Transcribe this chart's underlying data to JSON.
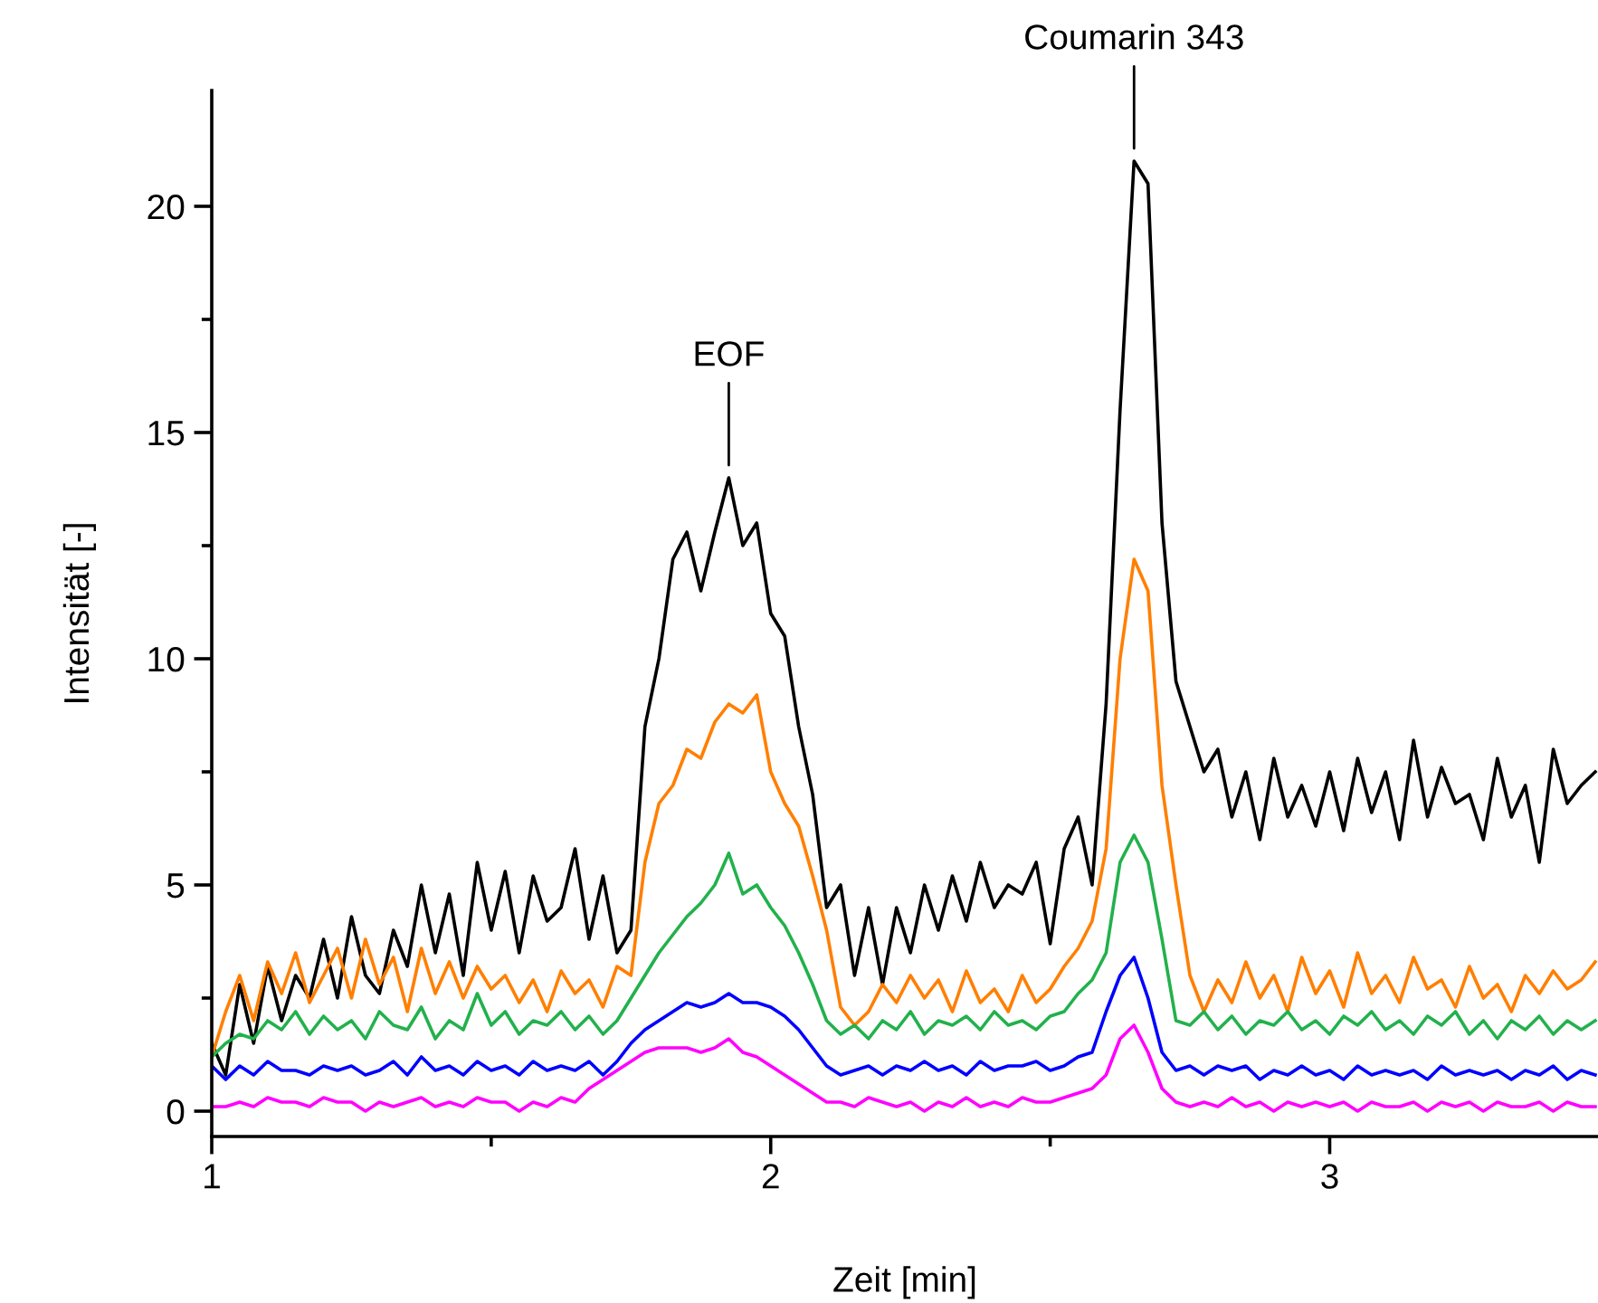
{
  "chart_data": {
    "type": "line",
    "xlabel": "Zeit [min]",
    "ylabel": "Intensität [-]",
    "xlim": [
      1,
      3.48
    ],
    "ylim": [
      -0.56,
      22.56
    ],
    "xticks": [
      1,
      {
        "value": 1.5,
        "label": null
      },
      2,
      {
        "value": 2.5,
        "label": null
      },
      3
    ],
    "yticks": [
      0,
      {
        "value": 2.5,
        "label": null
      },
      5,
      {
        "value": 7.5,
        "label": null
      },
      10,
      {
        "value": 12.5,
        "label": null
      },
      15,
      {
        "value": 17.5,
        "label": null
      },
      20
    ],
    "grid": false,
    "legend": false,
    "marker": "none",
    "line_style": "solid",
    "annotations": [
      {
        "text": "EOF",
        "x": 1.925,
        "y": 14.0
      },
      {
        "text": "Coumarin 343",
        "x": 2.65,
        "y": 21.0
      }
    ],
    "x": [
      1.0,
      1.025,
      1.05,
      1.075,
      1.1,
      1.125,
      1.15,
      1.175,
      1.2,
      1.225,
      1.25,
      1.275,
      1.3,
      1.325,
      1.35,
      1.375,
      1.4,
      1.425,
      1.45,
      1.475,
      1.5,
      1.525,
      1.55,
      1.575,
      1.6,
      1.625,
      1.65,
      1.675,
      1.7,
      1.725,
      1.75,
      1.775,
      1.8,
      1.825,
      1.85,
      1.875,
      1.9,
      1.925,
      1.95,
      1.975,
      2.0,
      2.025,
      2.05,
      2.075,
      2.1,
      2.125,
      2.15,
      2.175,
      2.2,
      2.225,
      2.25,
      2.275,
      2.3,
      2.325,
      2.35,
      2.375,
      2.4,
      2.425,
      2.45,
      2.475,
      2.5,
      2.525,
      2.55,
      2.575,
      2.6,
      2.625,
      2.65,
      2.675,
      2.7,
      2.725,
      2.75,
      2.775,
      2.8,
      2.825,
      2.85,
      2.875,
      2.9,
      2.925,
      2.95,
      2.975,
      3.0,
      3.025,
      3.05,
      3.075,
      3.1,
      3.125,
      3.15,
      3.175,
      3.2,
      3.225,
      3.25,
      3.275,
      3.3,
      3.325,
      3.35,
      3.375,
      3.4,
      3.425,
      3.45,
      3.475
    ],
    "series": [
      {
        "color": "#000000",
        "values": [
          1.5,
          0.8,
          2.8,
          1.5,
          3.2,
          2.0,
          3.0,
          2.5,
          3.8,
          2.5,
          4.3,
          3.0,
          2.6,
          4.0,
          3.2,
          5.0,
          3.5,
          4.8,
          3.0,
          5.5,
          4.0,
          5.3,
          3.5,
          5.2,
          4.2,
          4.5,
          5.8,
          3.8,
          5.2,
          3.5,
          4.0,
          8.5,
          10.0,
          12.2,
          12.8,
          11.5,
          12.8,
          14.0,
          12.5,
          13.0,
          11.0,
          10.5,
          8.5,
          7.0,
          4.5,
          5.0,
          3.0,
          4.5,
          2.8,
          4.5,
          3.5,
          5.0,
          4.0,
          5.2,
          4.2,
          5.5,
          4.5,
          5.0,
          4.8,
          5.5,
          3.7,
          5.8,
          6.5,
          5.0,
          9.0,
          15.5,
          21.0,
          20.5,
          13.0,
          9.5,
          8.5,
          7.5,
          8.0,
          6.5,
          7.5,
          6.0,
          7.8,
          6.5,
          7.2,
          6.3,
          7.5,
          6.2,
          7.8,
          6.6,
          7.5,
          6.0,
          8.2,
          6.5,
          7.6,
          6.8,
          7.0,
          6.0,
          7.8,
          6.5,
          7.2,
          5.5,
          8.0,
          6.8,
          7.2,
          7.5
        ]
      },
      {
        "color": "#ff7f00",
        "values": [
          1.2,
          2.2,
          3.0,
          2.0,
          3.3,
          2.6,
          3.5,
          2.4,
          3.0,
          3.6,
          2.5,
          3.8,
          2.8,
          3.4,
          2.2,
          3.6,
          2.6,
          3.3,
          2.5,
          3.2,
          2.7,
          3.0,
          2.4,
          2.9,
          2.2,
          3.1,
          2.6,
          2.9,
          2.3,
          3.2,
          3.0,
          5.5,
          6.8,
          7.2,
          8.0,
          7.8,
          8.6,
          9.0,
          8.8,
          9.2,
          7.5,
          6.8,
          6.3,
          5.2,
          4.0,
          2.3,
          1.9,
          2.2,
          2.8,
          2.4,
          3.0,
          2.5,
          2.9,
          2.2,
          3.1,
          2.4,
          2.7,
          2.2,
          3.0,
          2.4,
          2.7,
          3.2,
          3.6,
          4.2,
          5.8,
          10.0,
          12.2,
          11.5,
          7.2,
          5.0,
          3.0,
          2.2,
          2.9,
          2.4,
          3.3,
          2.5,
          3.0,
          2.2,
          3.4,
          2.6,
          3.1,
          2.3,
          3.5,
          2.6,
          3.0,
          2.4,
          3.4,
          2.7,
          2.9,
          2.3,
          3.2,
          2.5,
          2.8,
          2.2,
          3.0,
          2.6,
          3.1,
          2.7,
          2.9,
          3.3
        ]
      },
      {
        "color": "#22b14c",
        "values": [
          1.2,
          1.5,
          1.7,
          1.6,
          2.0,
          1.8,
          2.2,
          1.7,
          2.1,
          1.8,
          2.0,
          1.6,
          2.2,
          1.9,
          1.8,
          2.3,
          1.6,
          2.0,
          1.8,
          2.6,
          1.9,
          2.2,
          1.7,
          2.0,
          1.9,
          2.2,
          1.8,
          2.1,
          1.7,
          2.0,
          2.5,
          3.0,
          3.5,
          3.9,
          4.3,
          4.6,
          5.0,
          5.7,
          4.8,
          5.0,
          4.5,
          4.1,
          3.5,
          2.8,
          2.0,
          1.7,
          1.9,
          1.6,
          2.0,
          1.8,
          2.2,
          1.7,
          2.0,
          1.9,
          2.1,
          1.8,
          2.2,
          1.9,
          2.0,
          1.8,
          2.1,
          2.2,
          2.6,
          2.9,
          3.5,
          5.5,
          6.1,
          5.5,
          3.8,
          2.0,
          1.9,
          2.2,
          1.8,
          2.1,
          1.7,
          2.0,
          1.9,
          2.2,
          1.8,
          2.0,
          1.7,
          2.1,
          1.9,
          2.2,
          1.8,
          2.0,
          1.7,
          2.1,
          1.9,
          2.2,
          1.7,
          2.0,
          1.6,
          2.0,
          1.8,
          2.1,
          1.7,
          2.0,
          1.8,
          2.0
        ]
      },
      {
        "color": "#0000ff",
        "values": [
          1.0,
          0.7,
          1.0,
          0.8,
          1.1,
          0.9,
          0.9,
          0.8,
          1.0,
          0.9,
          1.0,
          0.8,
          0.9,
          1.1,
          0.8,
          1.2,
          0.9,
          1.0,
          0.8,
          1.1,
          0.9,
          1.0,
          0.8,
          1.1,
          0.9,
          1.0,
          0.9,
          1.1,
          0.8,
          1.1,
          1.5,
          1.8,
          2.0,
          2.2,
          2.4,
          2.3,
          2.4,
          2.6,
          2.4,
          2.4,
          2.3,
          2.1,
          1.8,
          1.4,
          1.0,
          0.8,
          0.9,
          1.0,
          0.8,
          1.0,
          0.9,
          1.1,
          0.9,
          1.0,
          0.8,
          1.1,
          0.9,
          1.0,
          1.0,
          1.1,
          0.9,
          1.0,
          1.2,
          1.3,
          2.2,
          3.0,
          3.4,
          2.5,
          1.3,
          0.9,
          1.0,
          0.8,
          1.0,
          0.9,
          1.0,
          0.7,
          0.9,
          0.8,
          1.0,
          0.8,
          0.9,
          0.7,
          1.0,
          0.8,
          0.9,
          0.8,
          0.9,
          0.7,
          1.0,
          0.8,
          0.9,
          0.8,
          0.9,
          0.7,
          0.9,
          0.8,
          1.0,
          0.7,
          0.9,
          0.8
        ]
      },
      {
        "color": "#ff00ff",
        "values": [
          0.1,
          0.1,
          0.2,
          0.1,
          0.3,
          0.2,
          0.2,
          0.1,
          0.3,
          0.2,
          0.2,
          0.0,
          0.2,
          0.1,
          0.2,
          0.3,
          0.1,
          0.2,
          0.1,
          0.3,
          0.2,
          0.2,
          0.0,
          0.2,
          0.1,
          0.3,
          0.2,
          0.5,
          0.7,
          0.9,
          1.1,
          1.3,
          1.4,
          1.4,
          1.4,
          1.3,
          1.4,
          1.6,
          1.3,
          1.2,
          1.0,
          0.8,
          0.6,
          0.4,
          0.2,
          0.2,
          0.1,
          0.3,
          0.2,
          0.1,
          0.2,
          0.0,
          0.2,
          0.1,
          0.3,
          0.1,
          0.2,
          0.1,
          0.3,
          0.2,
          0.2,
          0.3,
          0.4,
          0.5,
          0.8,
          1.6,
          1.9,
          1.3,
          0.5,
          0.2,
          0.1,
          0.2,
          0.1,
          0.3,
          0.1,
          0.2,
          0.0,
          0.2,
          0.1,
          0.2,
          0.1,
          0.2,
          0.0,
          0.2,
          0.1,
          0.1,
          0.2,
          0.0,
          0.2,
          0.1,
          0.2,
          0.0,
          0.2,
          0.1,
          0.1,
          0.2,
          0.0,
          0.2,
          0.1,
          0.1
        ]
      }
    ]
  }
}
